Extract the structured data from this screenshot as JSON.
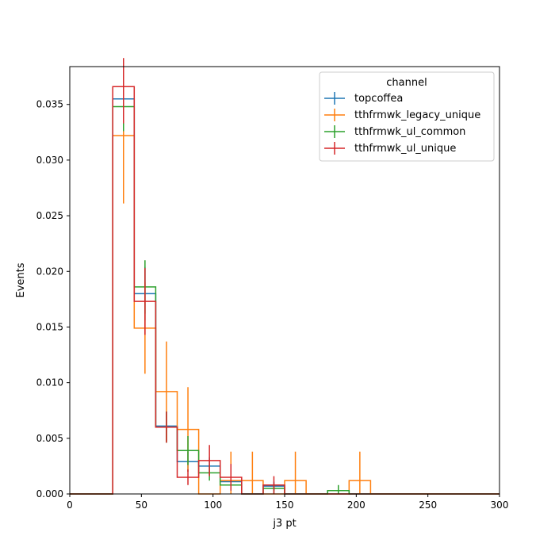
{
  "chart_data": {
    "type": "step histogram with error bars",
    "xlabel": "j3 pt",
    "ylabel": "Events",
    "xlim": [
      0,
      300
    ],
    "ylim": [
      0,
      0.0384
    ],
    "x_ticks": [
      "0",
      "50",
      "100",
      "150",
      "200",
      "250",
      "300"
    ],
    "y_ticks": [
      "0.000",
      "0.005",
      "0.010",
      "0.015",
      "0.020",
      "0.025",
      "0.030",
      "0.035"
    ],
    "legend_title": "channel",
    "legend_position": "top-right",
    "bin_edges": [
      0,
      15,
      30,
      45,
      60,
      75,
      90,
      105,
      120,
      135,
      150,
      165,
      180,
      195,
      210,
      225,
      240,
      255,
      270,
      285,
      300
    ],
    "series": [
      {
        "name": "topcoffea",
        "color": "#1f77b4",
        "values": [
          0,
          0,
          0.0355,
          0.018,
          0.0061,
          0.0029,
          0.0025,
          0.0011,
          0,
          0.0007,
          0,
          0,
          0.0003,
          0,
          0,
          0,
          0,
          0,
          0,
          0
        ],
        "errors": [
          0,
          0,
          0.0033,
          0.0024,
          0.0013,
          0.0009,
          0.0008,
          0.0005,
          0,
          0.0004,
          0,
          0,
          0.0003,
          0,
          0,
          0,
          0,
          0,
          0,
          0
        ]
      },
      {
        "name": "tthfrmwk_legacy_unique",
        "color": "#ff7f0e",
        "values": [
          0,
          0,
          0.0322,
          0.0149,
          0.0092,
          0.0058,
          0,
          0.0012,
          0.0012,
          0,
          0.0012,
          0,
          0,
          0.0012,
          0,
          0,
          0,
          0,
          0,
          0
        ],
        "errors": [
          0,
          0,
          0.0061,
          0.0041,
          0.0045,
          0.0038,
          0,
          0.0026,
          0.0026,
          0,
          0.0026,
          0,
          0,
          0.0026,
          0,
          0,
          0,
          0,
          0,
          0
        ]
      },
      {
        "name": "tthfrmwk_ul_common",
        "color": "#2ca02c",
        "values": [
          0,
          0,
          0.0348,
          0.0186,
          0.006,
          0.0039,
          0.0019,
          0.0008,
          0,
          0.0005,
          0,
          0,
          0.0003,
          0,
          0,
          0,
          0,
          0,
          0,
          0
        ],
        "errors": [
          0,
          0,
          0.0022,
          0.0024,
          0.0014,
          0.0013,
          0.0007,
          0.0005,
          0,
          0.0004,
          0,
          0,
          0.0005,
          0,
          0,
          0,
          0,
          0,
          0,
          0
        ]
      },
      {
        "name": "tthfrmwk_ul_unique",
        "color": "#d62728",
        "values": [
          0,
          0,
          0.0366,
          0.0173,
          0.006,
          0.0015,
          0.003,
          0.0015,
          0,
          0.0008,
          0,
          0,
          0,
          0,
          0,
          0,
          0,
          0,
          0,
          0
        ],
        "errors": [
          0,
          0,
          0.0033,
          0.003,
          0.0014,
          0.0007,
          0.0014,
          0.0012,
          0,
          0.0008,
          0,
          0,
          0,
          0,
          0,
          0,
          0,
          0,
          0,
          0
        ]
      }
    ]
  }
}
